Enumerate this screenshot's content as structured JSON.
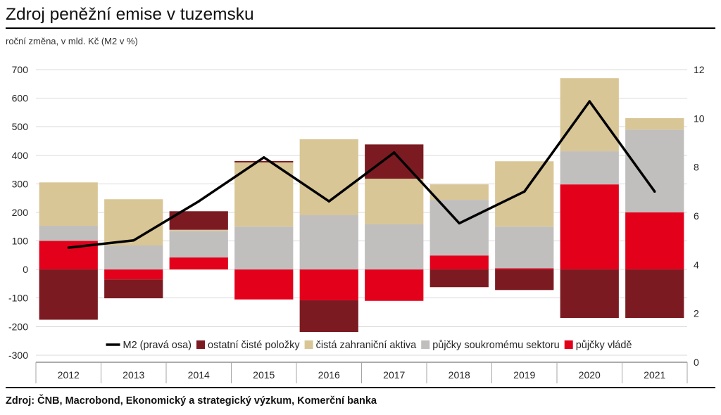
{
  "chart_data": {
    "type": "bar",
    "stacked": true,
    "title": "Zdroj peněžní emise v tuzemsku",
    "subtitle": "roční změna, v mld. Kč (M2 v %)",
    "categories": [
      "2012",
      "2013",
      "2014",
      "2015",
      "2016",
      "2017",
      "2018",
      "2019",
      "2020",
      "2021"
    ],
    "series": [
      {
        "name": "M2 (pravá osa)",
        "line": true,
        "right_axis": true,
        "color": "#000000",
        "values": [
          4.7,
          5.0,
          6.6,
          8.4,
          6.6,
          8.6,
          5.7,
          7.0,
          10.7,
          7.0
        ]
      },
      {
        "name": "ostatní čisté položky",
        "color": "#7b1b21",
        "values": [
          -176,
          -66,
          65,
          5,
          -111,
          120,
          -62,
          -72,
          -170,
          -170
        ]
      },
      {
        "name": "čistá zahraniční aktiva",
        "color": "#d9c696",
        "values": [
          152,
          162,
          4,
          225,
          266,
          160,
          54,
          229,
          256,
          40
        ]
      },
      {
        "name": "půjčky soukromému sektoru",
        "color": "#c1bebe",
        "values": [
          53,
          84,
          93,
          150,
          190,
          158,
          195,
          146,
          116,
          290
        ]
      },
      {
        "name": "půjčky vládě",
        "color": "#e3001b",
        "values": [
          100,
          -35,
          42,
          -105,
          -108,
          -110,
          49,
          4,
          298,
          200
        ]
      }
    ],
    "y_left": {
      "min": -325,
      "max": 700,
      "ticks": [
        700,
        600,
        500,
        400,
        300,
        200,
        100,
        0,
        -100,
        -200,
        -300
      ]
    },
    "y_right": {
      "min": 0,
      "max": 12,
      "ticks": [
        12,
        10,
        8,
        6,
        4,
        2,
        0
      ]
    },
    "grid": true,
    "legend_position": "bottom"
  },
  "source": "Zdroj: ČNB, Macrobond, Ekonomický a strategický výzkum, Komerční banka",
  "colors": {
    "grid": "#d9d9d9",
    "axis": "#595959",
    "tick": "#a6a6a6",
    "text": "#262626"
  }
}
